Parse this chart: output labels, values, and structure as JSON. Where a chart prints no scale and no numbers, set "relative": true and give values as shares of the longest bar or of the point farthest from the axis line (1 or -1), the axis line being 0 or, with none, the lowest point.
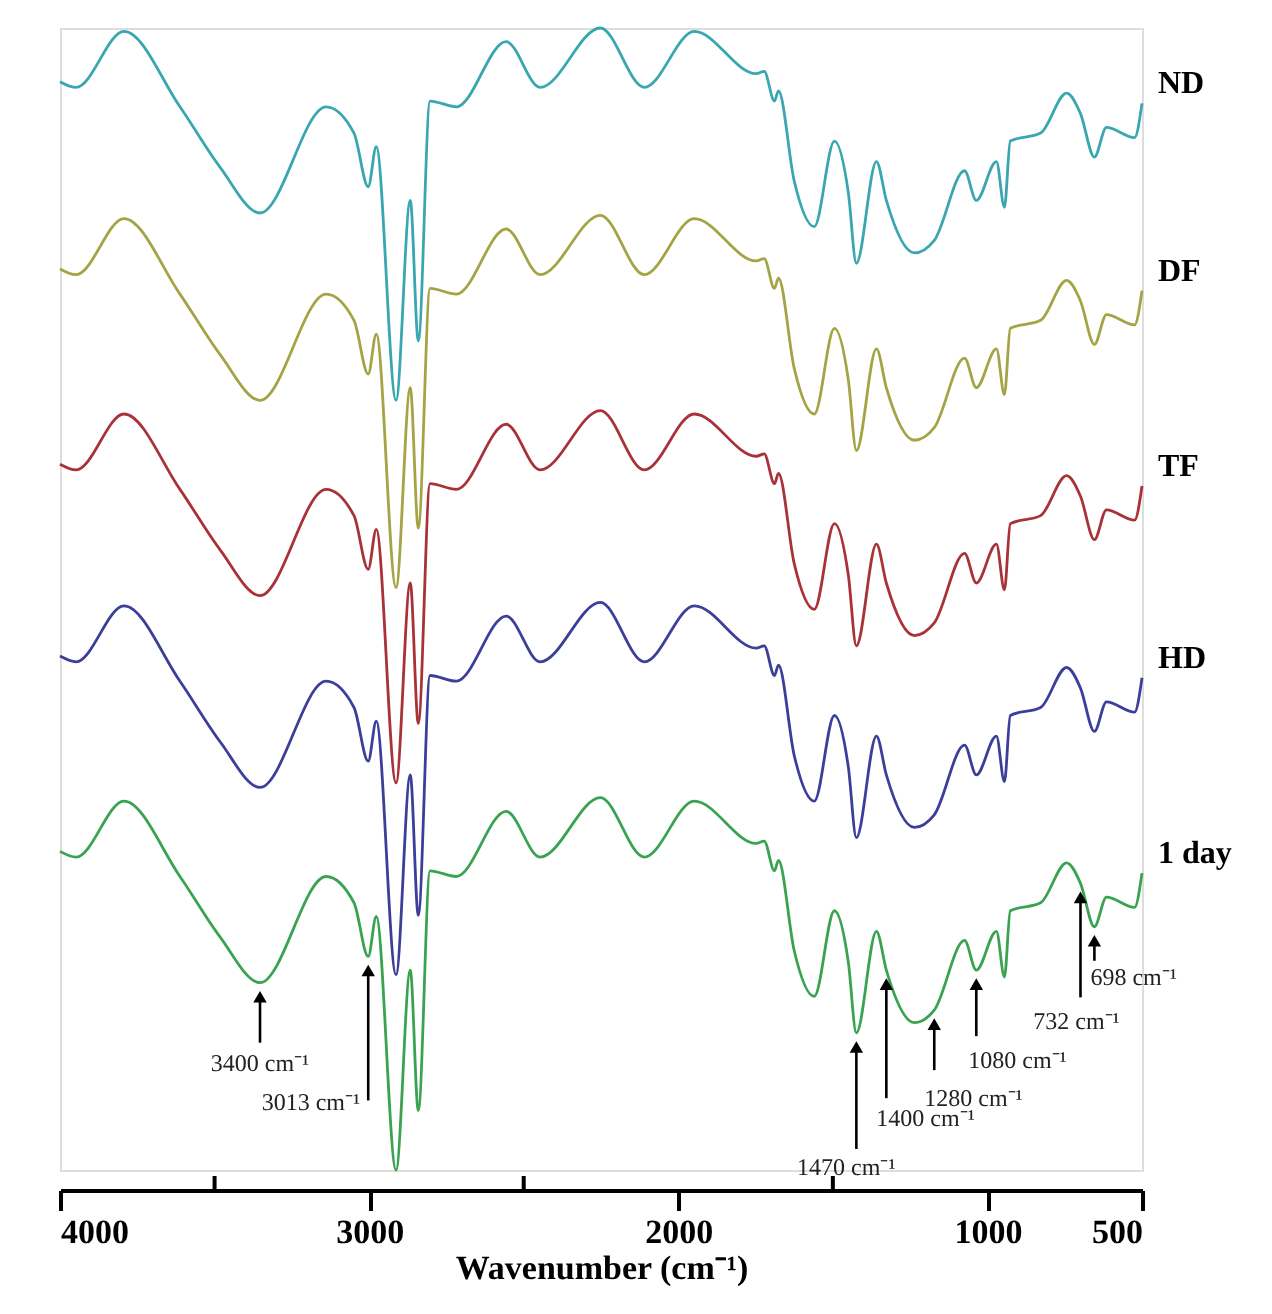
{
  "chart_data": {
    "type": "line",
    "relative": true,
    "xlabel": "Wavenumber (cm⁻¹)",
    "xlim": [
      4000,
      500
    ],
    "xticks": [
      4000,
      {
        "value": 3500,
        "label": null
      },
      3000,
      {
        "value": 2500,
        "label": null
      },
      2000,
      {
        "value": 1500,
        "label": null
      },
      1000,
      500
    ],
    "x": [
      4000,
      3948,
      3793,
      3612,
      3482,
      3353,
      3139,
      3049,
      3003,
      2977,
      2913,
      2867,
      2841,
      2803,
      2718,
      2557,
      2447,
      2252,
      2110,
      1948,
      1748,
      1722,
      1689,
      1676,
      1625,
      1560,
      1495,
      1450,
      1424,
      1359,
      1327,
      1236,
      1172,
      1074,
      1036,
      971,
      945,
      926,
      828,
      744,
      699,
      654,
      615,
      524,
      500
    ],
    "line_style": "solid",
    "series": [
      {
        "name": "ND",
        "color": "#3aa6b0",
        "values": [
          0.953,
          0.948,
          0.997,
          0.931,
          0.878,
          0.838,
          0.931,
          0.908,
          0.861,
          0.896,
          0.674,
          0.849,
          0.726,
          0.936,
          0.931,
          0.988,
          0.948,
          1.0,
          0.948,
          0.997,
          0.96,
          0.962,
          0.936,
          0.945,
          0.866,
          0.826,
          0.901,
          0.856,
          0.794,
          0.883,
          0.849,
          0.803,
          0.814,
          0.875,
          0.849,
          0.883,
          0.843,
          0.901,
          0.908,
          0.943,
          0.925,
          0.887,
          0.913,
          0.904,
          0.934
        ]
      },
      {
        "name": "DF",
        "color": "#a5a445",
        "values": [
          0.789,
          0.784,
          0.833,
          0.767,
          0.714,
          0.674,
          0.767,
          0.744,
          0.697,
          0.732,
          0.51,
          0.685,
          0.562,
          0.772,
          0.767,
          0.824,
          0.784,
          0.836,
          0.784,
          0.833,
          0.796,
          0.798,
          0.772,
          0.781,
          0.702,
          0.662,
          0.737,
          0.692,
          0.63,
          0.719,
          0.685,
          0.639,
          0.65,
          0.711,
          0.685,
          0.719,
          0.679,
          0.737,
          0.744,
          0.779,
          0.761,
          0.723,
          0.749,
          0.74,
          0.77
        ]
      },
      {
        "name": "TF",
        "color": "#a83238",
        "values": [
          0.618,
          0.613,
          0.662,
          0.596,
          0.543,
          0.503,
          0.596,
          0.573,
          0.526,
          0.561,
          0.339,
          0.514,
          0.391,
          0.601,
          0.596,
          0.653,
          0.613,
          0.665,
          0.613,
          0.662,
          0.625,
          0.627,
          0.601,
          0.61,
          0.531,
          0.491,
          0.566,
          0.521,
          0.459,
          0.548,
          0.514,
          0.468,
          0.479,
          0.54,
          0.514,
          0.548,
          0.508,
          0.566,
          0.573,
          0.608,
          0.59,
          0.552,
          0.578,
          0.569,
          0.599
        ]
      },
      {
        "name": "HD",
        "color": "#3c3f9a",
        "values": [
          0.45,
          0.445,
          0.494,
          0.428,
          0.375,
          0.335,
          0.428,
          0.405,
          0.358,
          0.393,
          0.171,
          0.346,
          0.223,
          0.433,
          0.428,
          0.485,
          0.445,
          0.497,
          0.445,
          0.494,
          0.457,
          0.459,
          0.433,
          0.442,
          0.363,
          0.323,
          0.398,
          0.353,
          0.291,
          0.38,
          0.346,
          0.3,
          0.311,
          0.372,
          0.346,
          0.38,
          0.34,
          0.398,
          0.405,
          0.44,
          0.422,
          0.384,
          0.41,
          0.401,
          0.431
        ]
      },
      {
        "name": "1 day",
        "color": "#3aa351",
        "values": [
          0.279,
          0.274,
          0.323,
          0.257,
          0.204,
          0.164,
          0.257,
          0.234,
          0.187,
          0.222,
          0.0,
          0.175,
          0.052,
          0.262,
          0.257,
          0.314,
          0.274,
          0.326,
          0.274,
          0.323,
          0.286,
          0.288,
          0.262,
          0.271,
          0.192,
          0.152,
          0.227,
          0.182,
          0.12,
          0.209,
          0.175,
          0.129,
          0.14,
          0.201,
          0.175,
          0.209,
          0.169,
          0.227,
          0.234,
          0.269,
          0.251,
          0.213,
          0.239,
          0.23,
          0.26
        ]
      }
    ],
    "annotations": [
      {
        "text": "3400 cm⁻¹",
        "x": 3353,
        "y": 0.164
      },
      {
        "text": "3013 cm⁻¹",
        "x": 3003,
        "y": 0.187
      },
      {
        "text": "1470 cm⁻¹",
        "x": 1424,
        "y": 0.12
      },
      {
        "text": "1400 cm⁻¹",
        "x": 1327,
        "y": 0.175
      },
      {
        "text": "1280 cm⁻¹",
        "x": 1172,
        "y": 0.14
      },
      {
        "text": "1080 cm⁻¹",
        "x": 1036,
        "y": 0.175
      },
      {
        "text": "732 cm⁻¹",
        "x": 699,
        "y": 0.251
      },
      {
        "text": "698 cm⁻¹",
        "x": 654,
        "y": 0.213
      }
    ]
  }
}
